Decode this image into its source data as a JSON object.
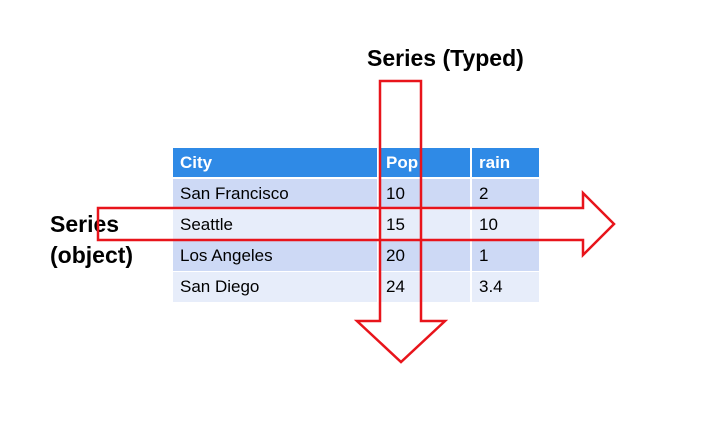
{
  "labels": {
    "typed": "Series (Typed)",
    "object_line1": "Series",
    "object_line2": "(object)"
  },
  "table": {
    "columns": [
      "City",
      "Pop",
      "rain"
    ],
    "rows": [
      [
        "San Francisco",
        "10",
        "2"
      ],
      [
        "Seattle",
        "15",
        "10"
      ],
      [
        "Los Angeles",
        "20",
        "1"
      ],
      [
        "San Diego",
        "24",
        "3.4"
      ]
    ]
  },
  "colors": {
    "header": "#2f8ae6",
    "row_odd": "#cdd9f5",
    "row_even": "#e7edfa",
    "arrow": "#e8141b"
  }
}
